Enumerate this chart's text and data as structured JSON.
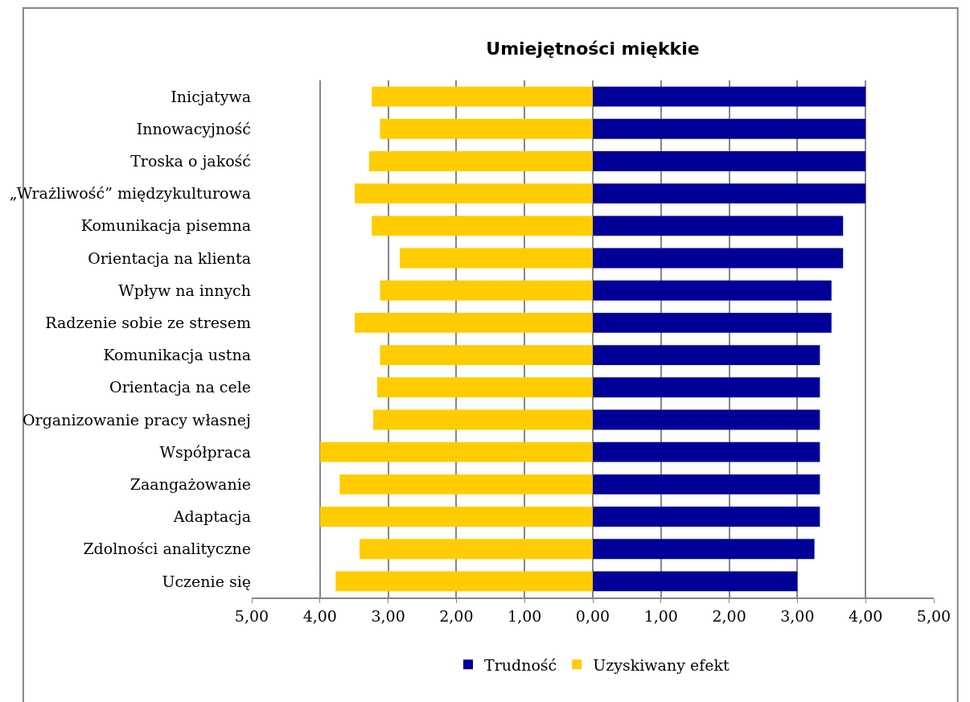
{
  "chart_data": {
    "type": "bar",
    "orientation": "horizontal",
    "title": "Umiejętności miękkie",
    "categories": [
      "Inicjatywa",
      "Innowacyjność",
      "Troska o jakość",
      "„Wrażliwość” międzykulturowa",
      "Komunikacja pisemna",
      "Orientacja na klienta",
      "Wpływ na innych",
      "Radzenie sobie ze stresem",
      "Komunikacja ustna",
      "Orientacja na cele",
      "Organizowanie pracy własnej",
      "Współpraca",
      "Zaangażowanie",
      "Adaptacja",
      "Zdolności analityczne",
      "Uczenie się"
    ],
    "series": [
      {
        "name": "Trudność",
        "color": "#000099",
        "values": [
          4.0,
          4.0,
          4.0,
          4.0,
          3.67,
          3.67,
          3.5,
          3.5,
          3.33,
          3.33,
          3.33,
          3.33,
          3.33,
          3.33,
          3.25,
          3.0
        ]
      },
      {
        "name": "Uzyskiwany efekt",
        "color": "#ffcc00",
        "values": [
          -3.24,
          -3.12,
          -3.28,
          -3.49,
          -3.24,
          -2.83,
          -3.12,
          -3.49,
          -3.12,
          -3.16,
          -3.22,
          -4.0,
          -3.71,
          -4.0,
          -3.42,
          -3.77
        ]
      }
    ],
    "xlim": [
      -5,
      5
    ],
    "xticks": [
      {
        "value": -5,
        "label": "5,00"
      },
      {
        "value": -4,
        "label": "4,00"
      },
      {
        "value": -3,
        "label": "3,00"
      },
      {
        "value": -2,
        "label": "2,00"
      },
      {
        "value": -1,
        "label": "1,00"
      },
      {
        "value": 0,
        "label": "0,00"
      },
      {
        "value": 1,
        "label": "1,00"
      },
      {
        "value": 2,
        "label": "2,00"
      },
      {
        "value": 3,
        "label": "3,00"
      },
      {
        "value": 4,
        "label": "4,00"
      },
      {
        "value": 5,
        "label": "5,00"
      }
    ],
    "grid": "x",
    "legend": "bottom",
    "stacked": true
  }
}
